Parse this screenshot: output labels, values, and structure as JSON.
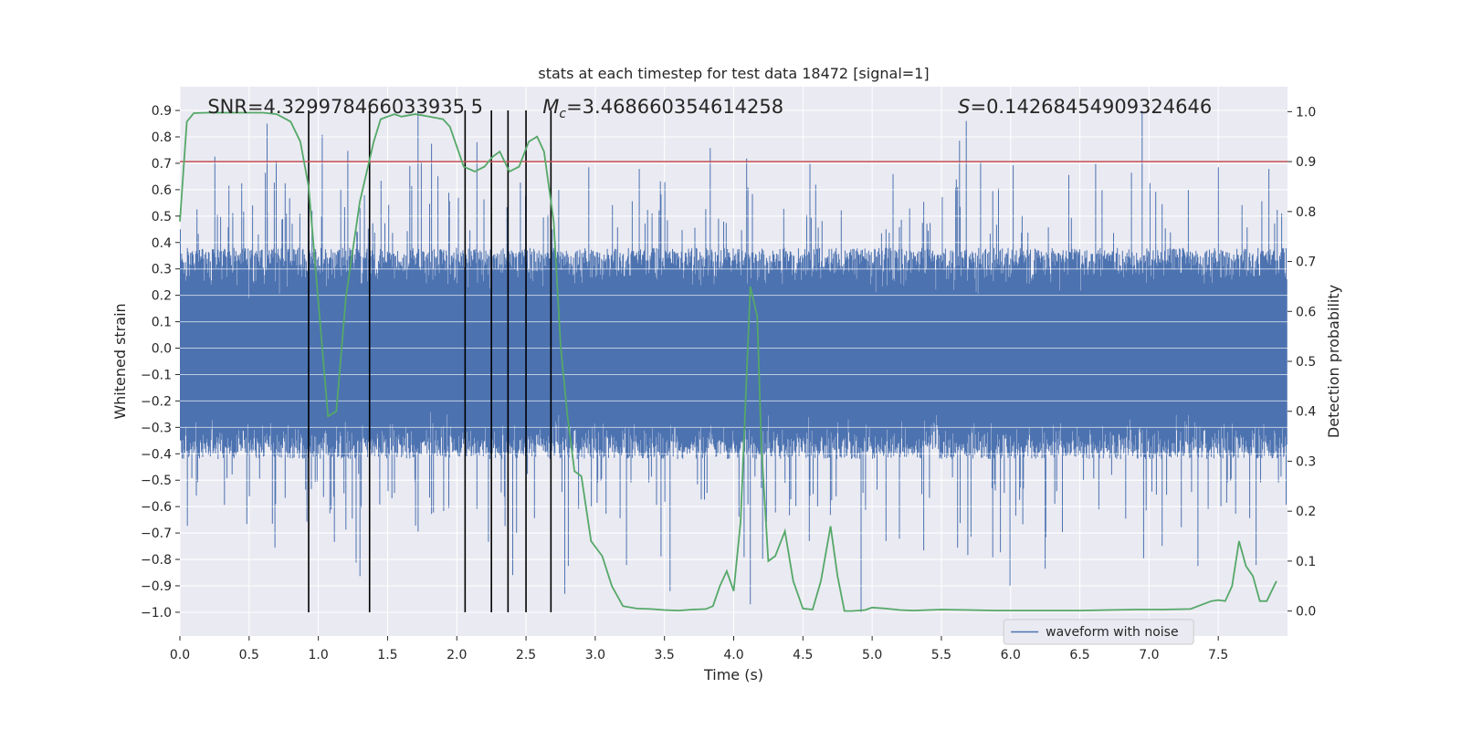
{
  "chart_data": {
    "type": "line",
    "title": "stats at each timestep for test data 18472 [signal=1]",
    "xlabel": "Time (s)",
    "ylabel": "Whitened strain",
    "y2label": "Detection probability",
    "xlim": [
      0.0,
      8.0
    ],
    "ylim": [
      -1.09,
      0.99
    ],
    "y2lim": [
      -0.05,
      1.05
    ],
    "xticks": [
      0.0,
      0.5,
      1.0,
      1.5,
      2.0,
      2.5,
      3.0,
      3.5,
      4.0,
      4.5,
      5.0,
      5.5,
      6.0,
      6.5,
      7.0,
      7.5
    ],
    "xtick_labels": [
      "0.0",
      "0.5",
      "1.0",
      "1.5",
      "2.0",
      "2.5",
      "3.0",
      "3.5",
      "4.0",
      "4.5",
      "5.0",
      "5.5",
      "6.0",
      "6.5",
      "7.0",
      "7.5"
    ],
    "yticks": [
      0.9,
      0.8,
      0.7,
      0.6,
      0.5,
      0.4,
      0.3,
      0.2,
      0.1,
      0.0,
      -0.1,
      -0.2,
      -0.3,
      -0.4,
      -0.5,
      -0.6,
      -0.7,
      -0.8,
      -0.9,
      -1.0
    ],
    "ytick_labels": [
      "0.9",
      "0.8",
      "0.7",
      "0.6",
      "0.5",
      "0.4",
      "0.3",
      "0.2",
      "0.1",
      "0.0",
      "−0.1",
      "−0.2",
      "−0.3",
      "−0.4",
      "−0.5",
      "−0.6",
      "−0.7",
      "−0.8",
      "−0.9",
      "−1.0"
    ],
    "y2ticks": [
      1.0,
      0.9,
      0.8,
      0.7,
      0.6,
      0.5,
      0.4,
      0.3,
      0.2,
      0.1,
      0.0
    ],
    "y2tick_labels": [
      "1.0",
      "0.9",
      "0.8",
      "0.7",
      "0.6",
      "0.5",
      "0.4",
      "0.3",
      "0.2",
      "0.1",
      "0.0"
    ],
    "grid": true,
    "legend": {
      "position": "lower-right",
      "entries": [
        "waveform with noise"
      ]
    },
    "annotations": {
      "snr": "SNR=4.329978466033935 5",
      "mc_symbol": "M",
      "mc_subscript": "c",
      "mc_value": "=3.468660354614258",
      "s_symbol": "S",
      "s_value": "=0.14268454909324646"
    },
    "threshold": {
      "value": 0.9,
      "axis": "y2",
      "color": "#c44e52"
    },
    "vertical_markers": [
      0.93,
      1.37,
      2.06,
      2.25,
      2.37,
      2.5,
      2.68
    ],
    "series": [
      {
        "name": "waveform with noise",
        "axis": "y",
        "color": "#4c72b0",
        "kind": "dense-noise",
        "typical_extent": [
          -0.42,
          0.38
        ],
        "peak_extent": [
          -1.0,
          0.9
        ]
      },
      {
        "axis": "y2",
        "color": "#55a868",
        "x": [
          0.0,
          0.05,
          0.1,
          0.2,
          0.3,
          0.4,
          0.5,
          0.6,
          0.7,
          0.8,
          0.87,
          0.93,
          1.0,
          1.07,
          1.13,
          1.2,
          1.3,
          1.4,
          1.45,
          1.5,
          1.55,
          1.6,
          1.7,
          1.8,
          1.9,
          1.95,
          2.0,
          2.05,
          2.13,
          2.2,
          2.26,
          2.31,
          2.38,
          2.45,
          2.52,
          2.58,
          2.63,
          2.7,
          2.75,
          2.8,
          2.85,
          2.9,
          2.97,
          3.05,
          3.12,
          3.2,
          3.3,
          3.4,
          3.5,
          3.6,
          3.7,
          3.8,
          3.85,
          3.9,
          3.95,
          4.0,
          4.05,
          4.12,
          4.17,
          4.2,
          4.25,
          4.3,
          4.37,
          4.43,
          4.5,
          4.57,
          4.63,
          4.7,
          4.75,
          4.8,
          4.85,
          4.9,
          4.95,
          5.0,
          5.1,
          5.2,
          5.3,
          5.4,
          5.5,
          5.7,
          5.9,
          6.1,
          6.3,
          6.5,
          6.7,
          6.9,
          7.1,
          7.3,
          7.45,
          7.5,
          7.55,
          7.6,
          7.65,
          7.7,
          7.75,
          7.8,
          7.85,
          7.92
        ],
        "y": [
          0.78,
          0.98,
          0.997,
          0.998,
          0.998,
          0.998,
          0.998,
          0.998,
          0.995,
          0.98,
          0.94,
          0.85,
          0.62,
          0.39,
          0.4,
          0.63,
          0.82,
          0.94,
          0.985,
          0.99,
          0.995,
          0.99,
          0.995,
          0.99,
          0.985,
          0.97,
          0.93,
          0.89,
          0.88,
          0.89,
          0.91,
          0.92,
          0.88,
          0.89,
          0.94,
          0.95,
          0.92,
          0.78,
          0.53,
          0.39,
          0.28,
          0.27,
          0.14,
          0.11,
          0.05,
          0.01,
          0.005,
          0.004,
          0.002,
          0.001,
          0.003,
          0.004,
          0.01,
          0.05,
          0.08,
          0.04,
          0.18,
          0.65,
          0.59,
          0.33,
          0.1,
          0.11,
          0.16,
          0.06,
          0.005,
          0.003,
          0.06,
          0.17,
          0.07,
          0.0,
          0.0,
          0.001,
          0.002,
          0.007,
          0.005,
          0.002,
          0.001,
          0.002,
          0.003,
          0.002,
          0.001,
          0.001,
          0.001,
          0.001,
          0.002,
          0.003,
          0.003,
          0.004,
          0.02,
          0.022,
          0.02,
          0.05,
          0.14,
          0.09,
          0.07,
          0.02,
          0.02,
          0.06
        ]
      }
    ]
  }
}
